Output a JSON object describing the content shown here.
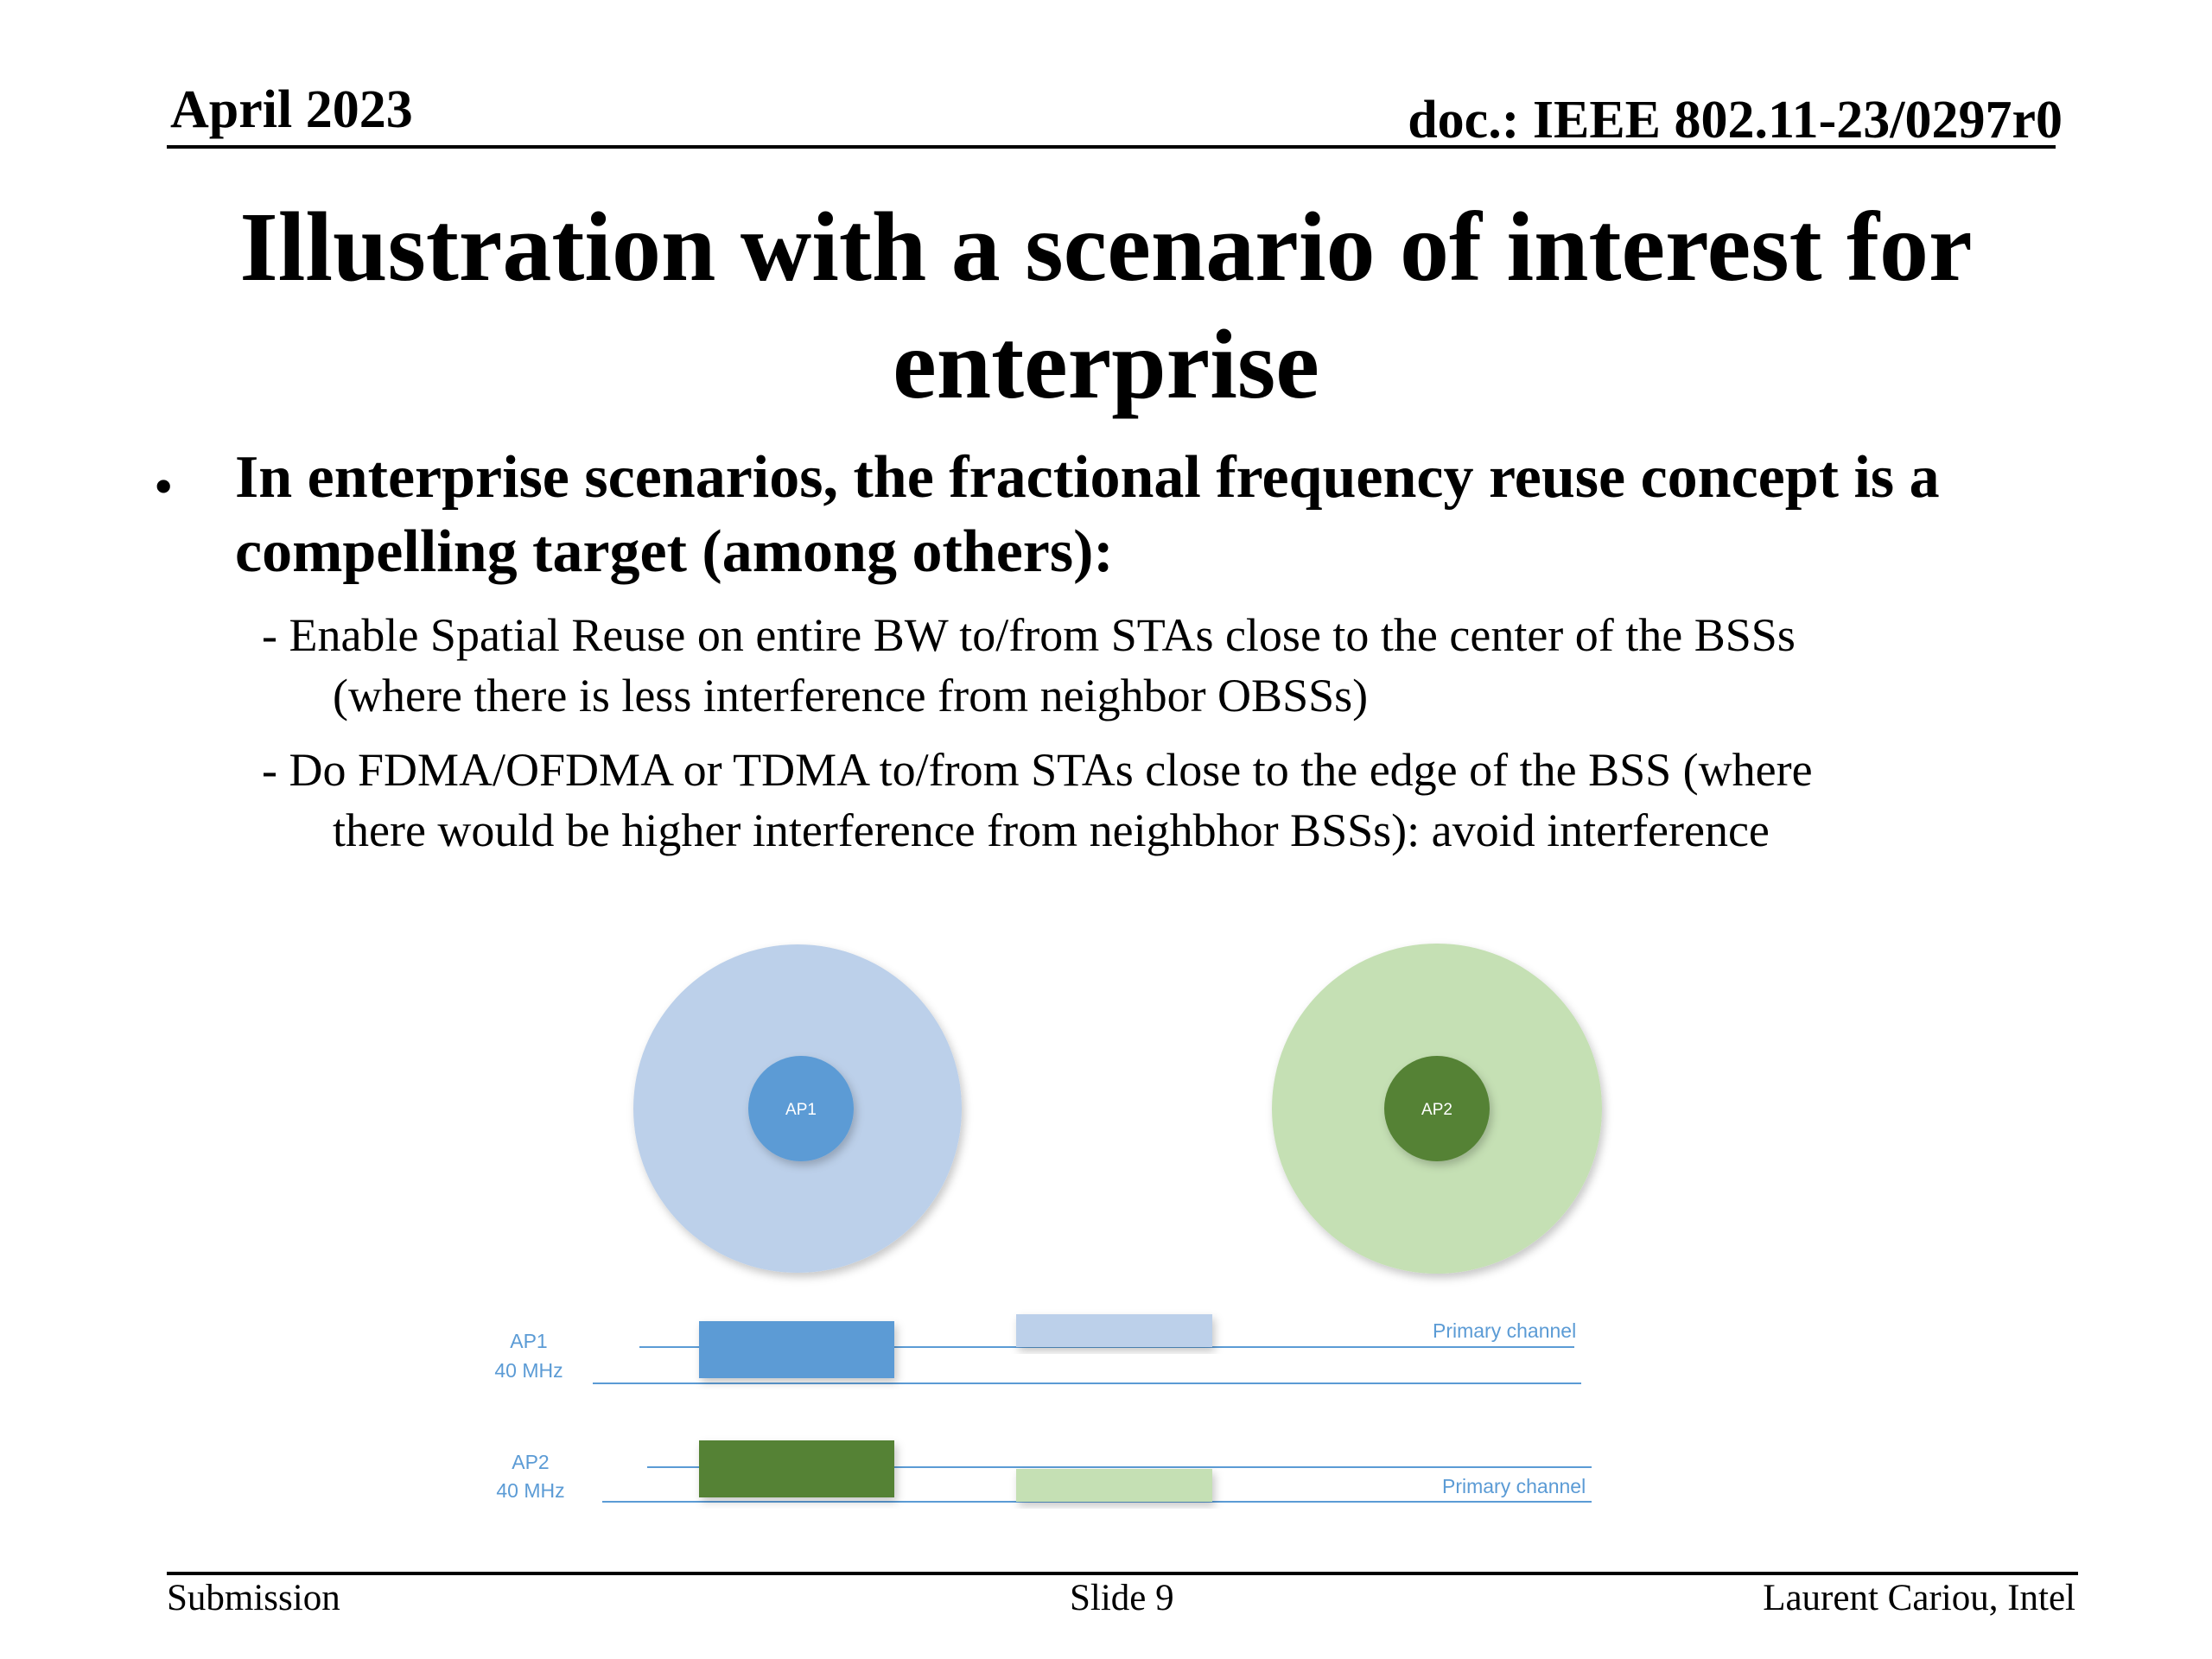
{
  "header": {
    "date": "April 2023",
    "doc": "doc.: IEEE 802.11-23/0297r0"
  },
  "title": {
    "line1": "Illustration with a scenario of interest for",
    "line2": "enterprise"
  },
  "bullet": {
    "marker": "•",
    "line1": "In enterprise scenarios, the fractional frequency reuse concept is a",
    "line2": "compelling target (among others):"
  },
  "subitems": [
    {
      "line1": "- Enable Spatial Reuse on entire BW to/from STAs close to the center of the BSSs",
      "line2": "(where there is less interference from neighbor OBSSs)"
    },
    {
      "line1": "- Do FDMA/OFDMA or TDMA to/from STAs close to the edge of the BSS (where",
      "line2": "there would be higher interference from neighbhor BSSs): avoid interference"
    }
  ],
  "diagram": {
    "ap1": {
      "label": "AP1",
      "outer_color": "#bcd0ea",
      "inner_color": "#5b9bd5"
    },
    "ap2": {
      "label": "AP2",
      "outer_color": "#c5e0b4",
      "inner_color": "#548235"
    },
    "channels": {
      "ap1_label_top": "AP1",
      "ap1_label_bottom": "40 MHz",
      "ap2_label_top": "AP2",
      "ap2_label_bottom": "40 MHz",
      "primary_label_ap1": "Primary channel",
      "primary_label_ap2": "Primary channel",
      "label_color": "#5b9bd5",
      "line_color": "#5b9bd5",
      "ap1_block_color": "#5b9bd5",
      "ap1_light_color": "#bcd0ea",
      "ap2_block_color": "#548235",
      "ap2_light_color": "#c5e0b4"
    }
  },
  "footer": {
    "left": "Submission",
    "center": "Slide 9",
    "right": "Laurent Cariou, Intel"
  }
}
